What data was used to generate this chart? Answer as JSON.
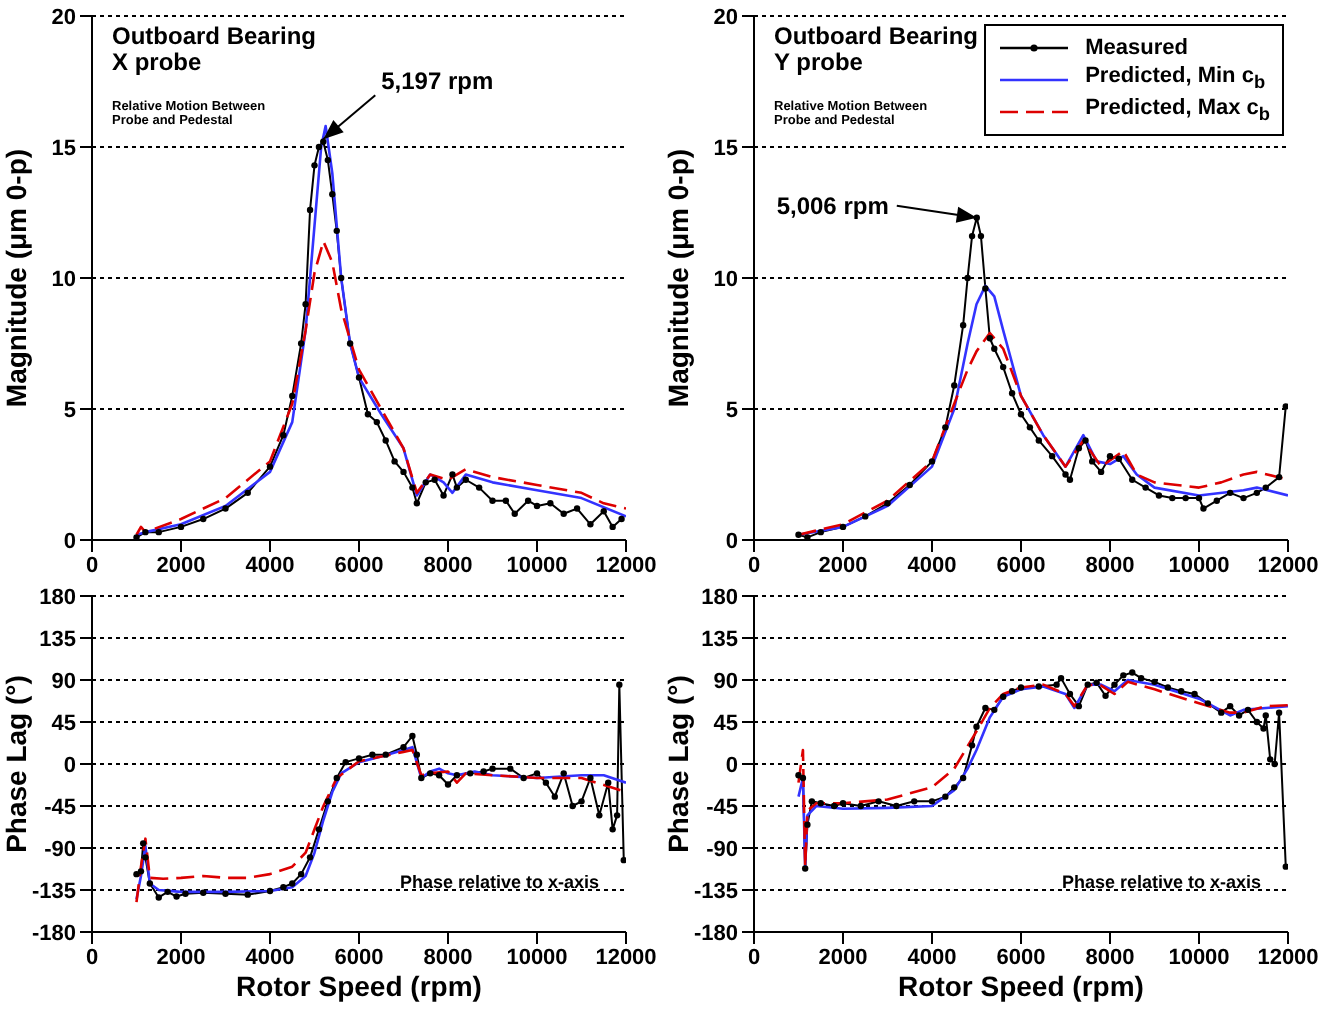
{
  "chart_data": [
    {
      "type": "line",
      "ylabel": "Magnitude (μm 0-p)",
      "xlim": [
        0,
        12000
      ],
      "xticks": [
        0,
        2000,
        4000,
        6000,
        8000,
        10000,
        12000
      ],
      "ylim": [
        0,
        20
      ],
      "yticks": [
        0,
        5,
        10,
        15,
        20
      ],
      "grid": "y",
      "legend": false,
      "annotations": [
        "Outboard Bearing\nX probe",
        "Relative Motion Between\nProbe and Pedestal",
        {
          "text": "5,197 rpm",
          "x": 5197,
          "y": 15.3
        }
      ],
      "series": [
        {
          "color": "#000000",
          "marker": "circle",
          "line_style": "solid",
          "x": [
            1000,
            1200,
            1500,
            2000,
            2500,
            3000,
            3500,
            4000,
            4300,
            4500,
            4700,
            4800,
            4900,
            5000,
            5100,
            5197,
            5300,
            5400,
            5500,
            5600,
            5800,
            6000,
            6200,
            6400,
            6600,
            6800,
            7000,
            7200,
            7300,
            7500,
            7700,
            7900,
            8100,
            8200,
            8400,
            8700,
            9000,
            9300,
            9500,
            9800,
            10000,
            10300,
            10600,
            10900,
            11200,
            11500,
            11700,
            11900
          ],
          "values": [
            0.1,
            0.3,
            0.3,
            0.5,
            0.8,
            1.2,
            1.8,
            2.8,
            4.0,
            5.5,
            7.5,
            9.0,
            12.6,
            14.3,
            15.0,
            15.2,
            14.5,
            13.2,
            11.8,
            10.0,
            7.5,
            6.2,
            4.8,
            4.5,
            3.8,
            3.0,
            2.6,
            2.0,
            1.4,
            2.2,
            2.3,
            1.7,
            2.5,
            2.0,
            2.3,
            2.0,
            1.5,
            1.5,
            1.0,
            1.5,
            1.3,
            1.4,
            1.0,
            1.2,
            0.6,
            1.1,
            0.5,
            0.8
          ]
        },
        {
          "color": "#3333ff",
          "marker": "none",
          "line_style": "solid",
          "x": [
            1000,
            1200,
            2000,
            3000,
            4000,
            4500,
            4800,
            5000,
            5150,
            5250,
            5400,
            5600,
            5800,
            6000,
            6500,
            7000,
            7300,
            7600,
            7900,
            8100,
            8400,
            9000,
            10000,
            11000,
            12000
          ],
          "values": [
            0.2,
            0.3,
            0.6,
            1.3,
            2.6,
            4.5,
            8,
            12,
            15,
            15.8,
            14,
            10,
            7.5,
            6.2,
            4.8,
            3.5,
            1.7,
            2.5,
            2.2,
            1.8,
            2.5,
            2.2,
            1.9,
            1.6,
            0.9
          ]
        },
        {
          "color": "#dd0000",
          "marker": "none",
          "line_style": "dashed",
          "x": [
            1000,
            1100,
            1200,
            2000,
            3000,
            4000,
            4500,
            4800,
            5000,
            5200,
            5400,
            5600,
            6000,
            6500,
            7000,
            7300,
            7600,
            8000,
            8400,
            9000,
            10000,
            11000,
            11500,
            12000
          ],
          "values": [
            0.2,
            0.5,
            0.3,
            0.8,
            1.6,
            3.0,
            5.2,
            8.0,
            10.2,
            11.4,
            10.6,
            8.8,
            6.5,
            5.0,
            3.5,
            1.8,
            2.5,
            2.3,
            2.7,
            2.4,
            2.1,
            1.8,
            1.4,
            1.2
          ]
        }
      ]
    },
    {
      "type": "line",
      "ylabel": "Magnitude (μm 0-p)",
      "xlim": [
        0,
        12000
      ],
      "xticks": [
        0,
        2000,
        4000,
        6000,
        8000,
        10000,
        12000
      ],
      "ylim": [
        0,
        20
      ],
      "yticks": [
        0,
        5,
        10,
        15,
        20
      ],
      "grid": "y",
      "legend": "top right",
      "annotations": [
        "Outboard Bearing\nY probe",
        "Relative Motion Between\nProbe and Pedestal",
        {
          "text": "5,006 rpm",
          "x": 5006,
          "y": 12.3
        }
      ],
      "series": [
        {
          "name": "Measured",
          "color": "#000000",
          "marker": "circle",
          "line_style": "solid",
          "x": [
            1000,
            1200,
            1500,
            2000,
            2500,
            3000,
            3500,
            4000,
            4300,
            4500,
            4700,
            4800,
            4900,
            5006,
            5100,
            5200,
            5300,
            5400,
            5600,
            5800,
            6000,
            6200,
            6400,
            6700,
            7000,
            7100,
            7300,
            7450,
            7600,
            7800,
            8000,
            8200,
            8500,
            8800,
            9100,
            9400,
            9700,
            10000,
            10100,
            10400,
            10700,
            11000,
            11300,
            11500,
            11800,
            11950
          ],
          "values": [
            0.2,
            0.1,
            0.3,
            0.5,
            0.9,
            1.4,
            2.1,
            3.0,
            4.3,
            5.9,
            8.2,
            10.0,
            11.6,
            12.3,
            11.6,
            9.6,
            7.7,
            7.3,
            6.6,
            5.6,
            4.8,
            4.3,
            3.8,
            3.2,
            2.5,
            2.3,
            3.5,
            3.8,
            3.0,
            2.6,
            3.2,
            3.1,
            2.3,
            2.0,
            1.7,
            1.6,
            1.6,
            1.6,
            1.2,
            1.5,
            1.8,
            1.6,
            1.8,
            2.0,
            2.4,
            5.1
          ]
        },
        {
          "name": "Predicted, Min c$_{b}$",
          "color": "#3333ff",
          "marker": "none",
          "line_style": "solid",
          "x": [
            1000,
            2000,
            3000,
            4000,
            4500,
            4800,
            5000,
            5200,
            5400,
            5600,
            6000,
            6500,
            7000,
            7400,
            7700,
            8000,
            8300,
            8600,
            9000,
            10000,
            11000,
            11300,
            12000
          ],
          "values": [
            0.2,
            0.5,
            1.3,
            2.8,
            5.0,
            7.5,
            9.0,
            9.7,
            9.3,
            8.0,
            5.5,
            4.0,
            2.8,
            4.0,
            3.0,
            2.9,
            3.2,
            2.5,
            2.0,
            1.7,
            1.9,
            2.0,
            1.7
          ]
        },
        {
          "name": "Predicted, Max c$_{b}$",
          "color": "#dd0000",
          "marker": "none",
          "line_style": "dashed",
          "x": [
            1000,
            2000,
            3000,
            4000,
            4500,
            4800,
            5000,
            5300,
            5600,
            6000,
            6500,
            7000,
            7400,
            7800,
            8300,
            8600,
            9000,
            10000,
            10500,
            11000,
            11300,
            12000
          ],
          "values": [
            0.2,
            0.6,
            1.5,
            3.0,
            5.2,
            6.5,
            7.2,
            7.9,
            7.3,
            5.5,
            4.0,
            2.8,
            3.8,
            2.8,
            3.4,
            2.5,
            2.2,
            2.0,
            2.2,
            2.5,
            2.6,
            2.3
          ]
        }
      ]
    },
    {
      "type": "line",
      "xlabel": "Rotor Speed (rpm)",
      "ylabel": "Phase Lag (°)",
      "xlim": [
        0,
        12000
      ],
      "xticks": [
        0,
        2000,
        4000,
        6000,
        8000,
        10000,
        12000
      ],
      "ylim": [
        -180,
        180
      ],
      "yticks": [
        -180,
        -135,
        -90,
        -45,
        0,
        45,
        90,
        135,
        180
      ],
      "grid": "y",
      "legend": false,
      "annotations": [
        "Phase relative to x-axis"
      ],
      "series": [
        {
          "color": "#000000",
          "marker": "circle",
          "line_style": "solid",
          "x": [
            1000,
            1100,
            1150,
            1200,
            1300,
            1500,
            1700,
            1900,
            2100,
            2500,
            3000,
            3500,
            4000,
            4300,
            4500,
            4700,
            4900,
            5100,
            5300,
            5500,
            5700,
            6000,
            6300,
            6600,
            7000,
            7200,
            7300,
            7400,
            7600,
            7800,
            8000,
            8200,
            8500,
            8800,
            9000,
            9400,
            9700,
            10000,
            10200,
            10400,
            10600,
            10800,
            11000,
            11200,
            11400,
            11600,
            11700,
            11800,
            11850,
            11950
          ],
          "values": [
            -118,
            -115,
            -85,
            -100,
            -128,
            -143,
            -137,
            -142,
            -139,
            -138,
            -139,
            -140,
            -136,
            -132,
            -128,
            -118,
            -100,
            -70,
            -40,
            -15,
            2,
            6,
            10,
            10,
            18,
            30,
            10,
            -15,
            -10,
            -12,
            -22,
            -12,
            -10,
            -8,
            -5,
            -5,
            -15,
            -10,
            -20,
            -35,
            -10,
            -45,
            -40,
            -15,
            -55,
            -20,
            -70,
            -55,
            85,
            -103
          ]
        },
        {
          "color": "#3333ff",
          "marker": "none",
          "line_style": "solid",
          "x": [
            1000,
            1100,
            1200,
            1300,
            1500,
            2000,
            3000,
            4000,
            4500,
            4800,
            5000,
            5200,
            5400,
            5600,
            6000,
            6500,
            7000,
            7200,
            7400,
            7600,
            7800,
            8000,
            8200,
            8600,
            9000,
            10000,
            11000,
            11500,
            12000
          ],
          "values": [
            -145,
            -120,
            -88,
            -128,
            -135,
            -137,
            -137,
            -136,
            -132,
            -120,
            -95,
            -60,
            -30,
            -10,
            2,
            8,
            15,
            18,
            -15,
            -8,
            -5,
            -10,
            -12,
            -8,
            -12,
            -15,
            -12,
            -12,
            -20
          ]
        },
        {
          "color": "#dd0000",
          "marker": "none",
          "line_style": "dashed",
          "x": [
            1000,
            1100,
            1200,
            1300,
            1600,
            2000,
            2500,
            3000,
            3500,
            4000,
            4500,
            4800,
            5000,
            5200,
            5500,
            6000,
            6500,
            7000,
            7200,
            7400,
            7600,
            8000,
            8200,
            8400,
            9000,
            10000,
            11000,
            12000
          ],
          "values": [
            -148,
            -110,
            -80,
            -122,
            -123,
            -122,
            -120,
            -122,
            -122,
            -118,
            -110,
            -95,
            -70,
            -45,
            -15,
            3,
            8,
            13,
            15,
            -12,
            -10,
            -8,
            -20,
            -10,
            -12,
            -15,
            -15,
            -30
          ]
        }
      ]
    },
    {
      "type": "line",
      "xlabel": "Rotor Speed (rpm)",
      "ylabel": "Phase Lag (°)",
      "xlim": [
        0,
        12000
      ],
      "xticks": [
        0,
        2000,
        4000,
        6000,
        8000,
        10000,
        12000
      ],
      "ylim": [
        -180,
        180
      ],
      "yticks": [
        -180,
        -135,
        -90,
        -45,
        0,
        45,
        90,
        135,
        180
      ],
      "grid": "y",
      "legend": false,
      "annotations": [
        "Phase relative to x-axis"
      ],
      "series": [
        {
          "color": "#000000",
          "marker": "circle",
          "line_style": "solid",
          "x": [
            1000,
            1100,
            1150,
            1200,
            1300,
            1500,
            1800,
            2000,
            2400,
            2800,
            3200,
            3600,
            4000,
            4300,
            4500,
            4700,
            4900,
            5000,
            5200,
            5400,
            5600,
            5800,
            6000,
            6400,
            6800,
            6900,
            7100,
            7300,
            7500,
            7700,
            7900,
            8100,
            8300,
            8500,
            8700,
            9000,
            9300,
            9600,
            9900,
            10200,
            10500,
            10700,
            10900,
            11100,
            11300,
            11450,
            11500,
            11600,
            11700,
            11800,
            11950
          ],
          "values": [
            -12,
            -15,
            -112,
            -65,
            -40,
            -42,
            -45,
            -42,
            -45,
            -40,
            -45,
            -40,
            -40,
            -35,
            -25,
            -15,
            20,
            40,
            60,
            58,
            72,
            78,
            82,
            83,
            85,
            92,
            75,
            62,
            85,
            87,
            73,
            85,
            95,
            98,
            92,
            88,
            82,
            78,
            75,
            65,
            55,
            62,
            52,
            58,
            45,
            38,
            52,
            5,
            0,
            55,
            -110
          ]
        },
        {
          "color": "#3333ff",
          "marker": "none",
          "line_style": "solid",
          "x": [
            1000,
            1100,
            1150,
            1200,
            1400,
            2000,
            3000,
            4000,
            4500,
            4800,
            5000,
            5300,
            5600,
            6000,
            6500,
            7000,
            7200,
            7500,
            7800,
            8100,
            8400,
            9000,
            10000,
            10700,
            11000,
            12000
          ],
          "values": [
            -35,
            -15,
            -110,
            -55,
            -45,
            -48,
            -47,
            -45,
            -28,
            -5,
            15,
            50,
            72,
            80,
            83,
            75,
            60,
            85,
            85,
            78,
            90,
            85,
            70,
            52,
            58,
            62
          ]
        },
        {
          "color": "#dd0000",
          "marker": "none",
          "line_style": "dashed",
          "x": [
            1000,
            1100,
            1150,
            1200,
            1400,
            2000,
            3000,
            4000,
            4500,
            5000,
            5300,
            5600,
            6000,
            6500,
            7000,
            7200,
            7500,
            7800,
            8100,
            8400,
            9000,
            10000,
            10700,
            11000,
            11500,
            12000
          ],
          "values": [
            -20,
            15,
            -110,
            -50,
            -42,
            -42,
            -38,
            -25,
            -5,
            35,
            60,
            75,
            82,
            85,
            75,
            62,
            85,
            84,
            75,
            88,
            80,
            65,
            55,
            55,
            62,
            63
          ]
        }
      ]
    }
  ]
}
